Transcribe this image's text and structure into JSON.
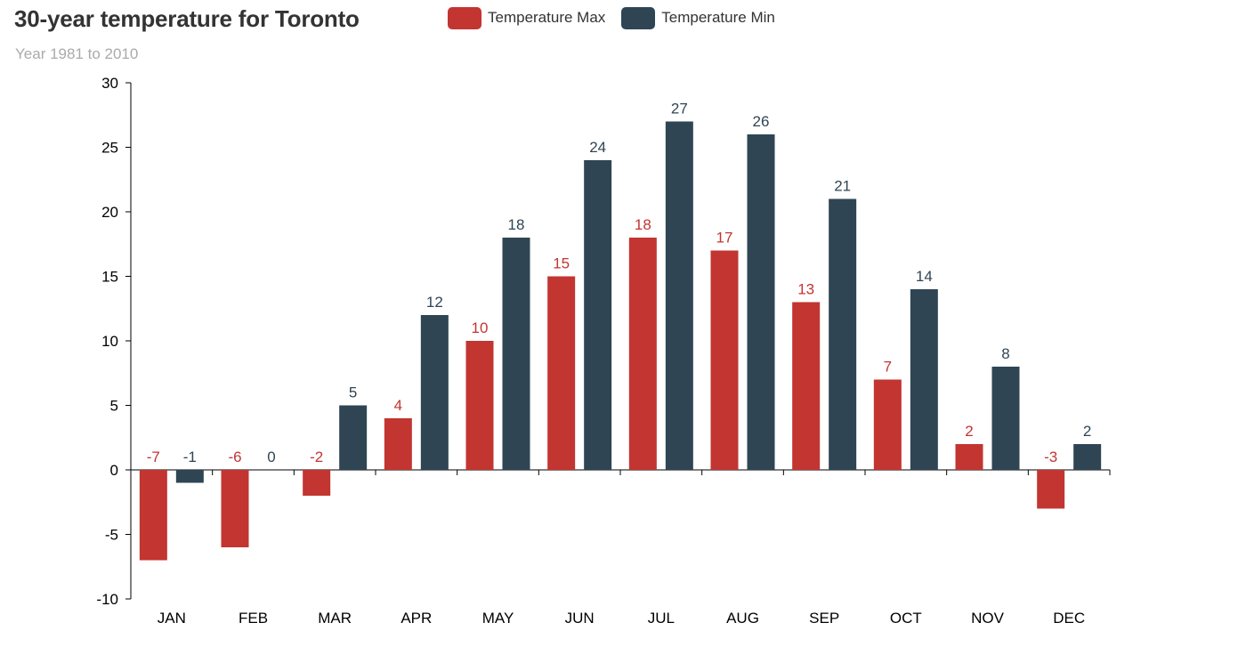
{
  "title": "30-year temperature for Toronto",
  "subtitle": "Year 1981 to 2010",
  "colors": {
    "max": "#c23531",
    "min": "#2f4554",
    "axis": "#000000"
  },
  "legend": [
    {
      "label": "Temperature Max",
      "color": "#c23531"
    },
    {
      "label": "Temperature Min",
      "color": "#2f4554"
    }
  ],
  "chart_data": {
    "type": "bar",
    "title": "30-year temperature for Toronto",
    "subtitle": "Year 1981 to 2010",
    "xlabel": "",
    "ylabel": "",
    "categories": [
      "JAN",
      "FEB",
      "MAR",
      "APR",
      "MAY",
      "JUN",
      "JUL",
      "AUG",
      "SEP",
      "OCT",
      "NOV",
      "DEC"
    ],
    "series": [
      {
        "name": "Temperature Max",
        "color": "#c23531",
        "values": [
          -7,
          -6,
          -2,
          4,
          10,
          15,
          18,
          17,
          13,
          7,
          2,
          -3
        ]
      },
      {
        "name": "Temperature Min",
        "color": "#2f4554",
        "values": [
          -1,
          0,
          5,
          12,
          18,
          24,
          27,
          26,
          21,
          14,
          8,
          2
        ]
      }
    ],
    "ylim": [
      -10,
      30
    ],
    "yticks": [
      -10,
      -5,
      0,
      5,
      10,
      15,
      20,
      25,
      30
    ],
    "grid": false,
    "legend_position": "top",
    "data_labels": true
  }
}
